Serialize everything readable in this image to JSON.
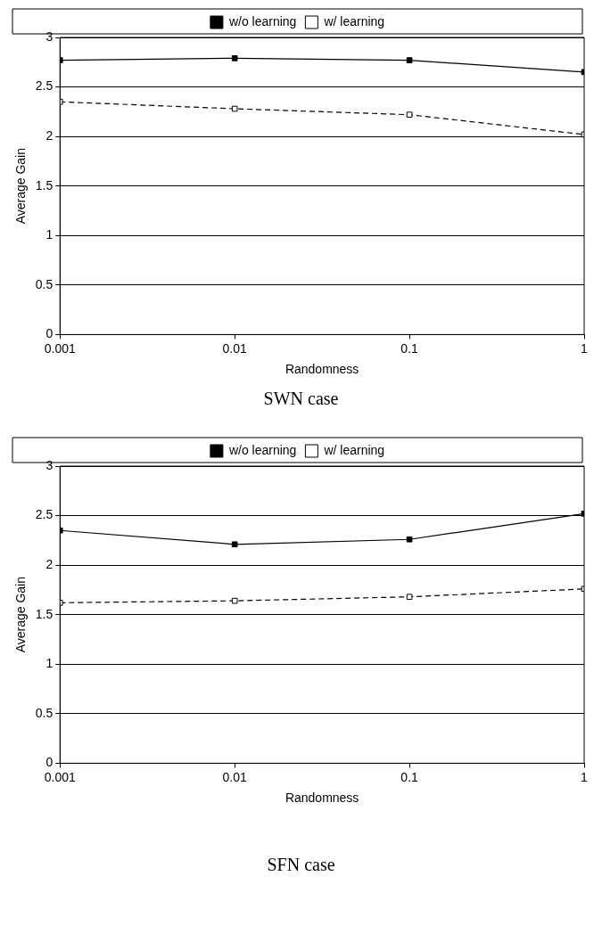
{
  "chart_data": [
    {
      "type": "line",
      "x": [
        0.001,
        0.01,
        0.1,
        1
      ],
      "xlabel": "Randomness",
      "ylabel": "Average Gain",
      "xlim": [
        0.001,
        1
      ],
      "xticks": [
        0.001,
        0.01,
        0.1,
        1
      ],
      "ylim": [
        0,
        3
      ],
      "yticks": [
        0,
        0.5,
        1,
        1.5,
        2,
        2.5,
        3
      ],
      "log": "x",
      "grid": "y",
      "legend": "top",
      "marker": "square",
      "annotations": [
        "SWN case"
      ],
      "series": [
        {
          "name": "w/o learning",
          "color": "#000000",
          "line_style": "solid",
          "values": [
            2.77,
            2.79,
            2.77,
            2.65
          ]
        },
        {
          "name": "w/ learning",
          "color": "#000000",
          "line_style": "dashed",
          "values": [
            2.35,
            2.28,
            2.22,
            2.02
          ]
        }
      ]
    },
    {
      "type": "line",
      "x": [
        0.001,
        0.01,
        0.1,
        1
      ],
      "xlabel": "Randomness",
      "ylabel": "Average Gain",
      "xlim": [
        0.001,
        1
      ],
      "xticks": [
        0.001,
        0.01,
        0.1,
        1
      ],
      "ylim": [
        0,
        3
      ],
      "yticks": [
        0,
        0.5,
        1,
        1.5,
        2,
        2.5,
        3
      ],
      "log": "x",
      "grid": "y",
      "legend": "top",
      "marker": "square",
      "annotations": [
        "SFN case"
      ],
      "series": [
        {
          "name": "w/o learning",
          "color": "#000000",
          "line_style": "solid",
          "values": [
            2.35,
            2.21,
            2.26,
            2.52
          ]
        },
        {
          "name": "w/ learning",
          "color": "#000000",
          "line_style": "dashed",
          "values": [
            1.62,
            1.64,
            1.68,
            1.76
          ]
        }
      ]
    }
  ]
}
